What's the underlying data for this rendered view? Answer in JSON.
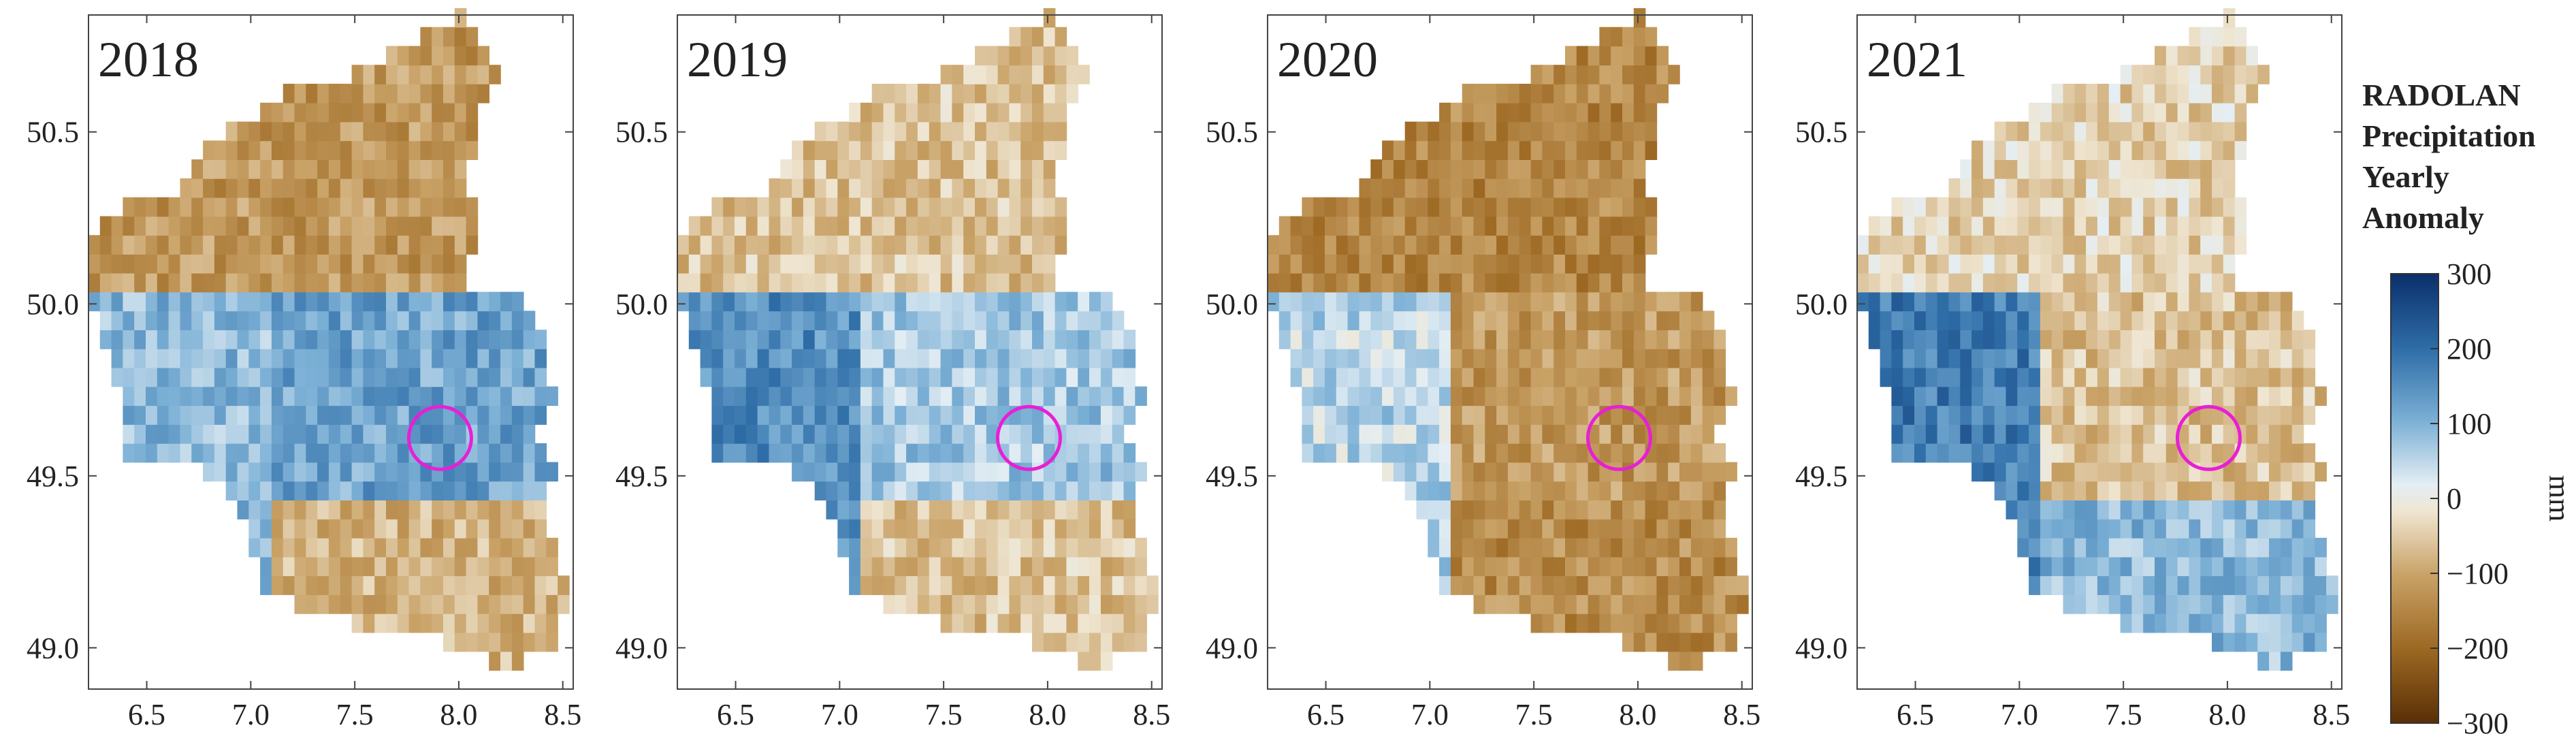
{
  "figure": {
    "years": [
      "2018",
      "2019",
      "2020",
      "2021"
    ],
    "x_ticks": [
      "6.5",
      "7.0",
      "7.5",
      "8.0",
      "8.5"
    ],
    "y_ticks": [
      "50.5",
      "50.0",
      "49.5",
      "49.0"
    ],
    "colorbar": {
      "title_lines": [
        "RADOLAN",
        "Precipitation",
        "Yearly",
        "Anomaly"
      ],
      "unit": "mm",
      "tick_labels": [
        "300",
        "200",
        "100",
        "0",
        "−100",
        "−200",
        "−300"
      ],
      "range": [
        -300,
        300
      ],
      "colors": [
        "#6b3a07",
        "#9e6a24",
        "#c9a267",
        "#efe5d0",
        "#cfe0ec",
        "#5b9ac6",
        "#0b2f6b"
      ]
    },
    "marker": {
      "type": "circle",
      "color": "#e81fd6"
    }
  },
  "chart_data": [
    {
      "type": "heatmap",
      "title": "2018",
      "xlim": [
        6.22,
        8.55
      ],
      "ylim": [
        48.88,
        50.84
      ],
      "x_ticks": [
        6.5,
        7.0,
        7.5,
        8.0,
        8.5
      ],
      "y_ticks": [
        49.0,
        49.5,
        50.0,
        50.5
      ],
      "highlight": {
        "lon": 7.91,
        "lat": 49.61
      },
      "regional_anomaly": [
        {
          "region": "north",
          "value": -120
        },
        {
          "region": "west",
          "value": 90
        },
        {
          "region": "central",
          "value": 120
        },
        {
          "region": "south",
          "value": -80
        }
      ]
    },
    {
      "type": "heatmap",
      "title": "2019",
      "xlim": [
        6.22,
        8.55
      ],
      "ylim": [
        48.88,
        50.84
      ],
      "x_ticks": [
        6.5,
        7.0,
        7.5,
        8.0,
        8.5
      ],
      "y_ticks": [
        49.0,
        49.5,
        50.0,
        50.5
      ],
      "highlight": {
        "lon": 7.91,
        "lat": 49.61
      },
      "regional_anomaly": [
        {
          "region": "north",
          "value": -60
        },
        {
          "region": "west",
          "value": 150
        },
        {
          "region": "central",
          "value": 70
        },
        {
          "region": "south",
          "value": -60
        }
      ]
    },
    {
      "type": "heatmap",
      "title": "2020",
      "xlim": [
        6.22,
        8.55
      ],
      "ylim": [
        48.88,
        50.84
      ],
      "x_ticks": [
        6.5,
        7.0,
        7.5,
        8.0,
        8.5
      ],
      "y_ticks": [
        49.0,
        49.5,
        50.0,
        50.5
      ],
      "highlight": {
        "lon": 7.91,
        "lat": 49.61
      },
      "regional_anomaly": [
        {
          "region": "north",
          "value": -150
        },
        {
          "region": "west",
          "value": 50
        },
        {
          "region": "central",
          "value": -120
        },
        {
          "region": "south",
          "value": -140
        }
      ]
    },
    {
      "type": "heatmap",
      "title": "2021",
      "xlim": [
        6.22,
        8.55
      ],
      "ylim": [
        48.88,
        50.84
      ],
      "x_ticks": [
        6.5,
        7.0,
        7.5,
        8.0,
        8.5
      ],
      "y_ticks": [
        49.0,
        49.5,
        50.0,
        50.5
      ],
      "highlight": {
        "lon": 7.91,
        "lat": 49.61
      },
      "regional_anomaly": [
        {
          "region": "north",
          "value": -40
        },
        {
          "region": "west",
          "value": 180
        },
        {
          "region": "central",
          "value": -60
        },
        {
          "region": "south",
          "value": 90
        }
      ]
    }
  ]
}
